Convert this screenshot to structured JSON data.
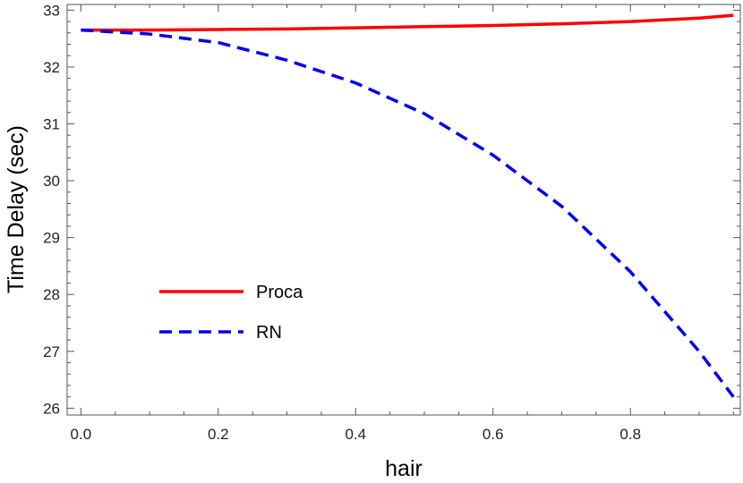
{
  "chart_data": {
    "type": "line",
    "xlabel": "hair",
    "ylabel": "Time Delay (sec)",
    "xlim": [
      -0.02,
      0.96
    ],
    "ylim": [
      25.88,
      33.1
    ],
    "x_ticks": [
      "0.0",
      "0.2",
      "0.4",
      "0.6",
      "0.8"
    ],
    "y_ticks": [
      "26",
      "27",
      "28",
      "29",
      "30",
      "31",
      "32",
      "33"
    ],
    "grid": false,
    "legend_position": "center-left",
    "x": [
      0.0,
      0.1,
      0.2,
      0.3,
      0.4,
      0.5,
      0.6,
      0.7,
      0.8,
      0.9,
      0.95
    ],
    "series": [
      {
        "name": "Proca",
        "color": "#ff0000",
        "dash": "solid",
        "values": [
          32.65,
          32.65,
          32.66,
          32.67,
          32.69,
          32.71,
          32.73,
          32.76,
          32.8,
          32.86,
          32.91
        ]
      },
      {
        "name": "RN",
        "color": "#0000ee",
        "dash": "dashed",
        "values": [
          32.65,
          32.58,
          32.43,
          32.12,
          31.72,
          31.18,
          30.45,
          29.55,
          28.4,
          27.0,
          26.2
        ]
      }
    ]
  }
}
